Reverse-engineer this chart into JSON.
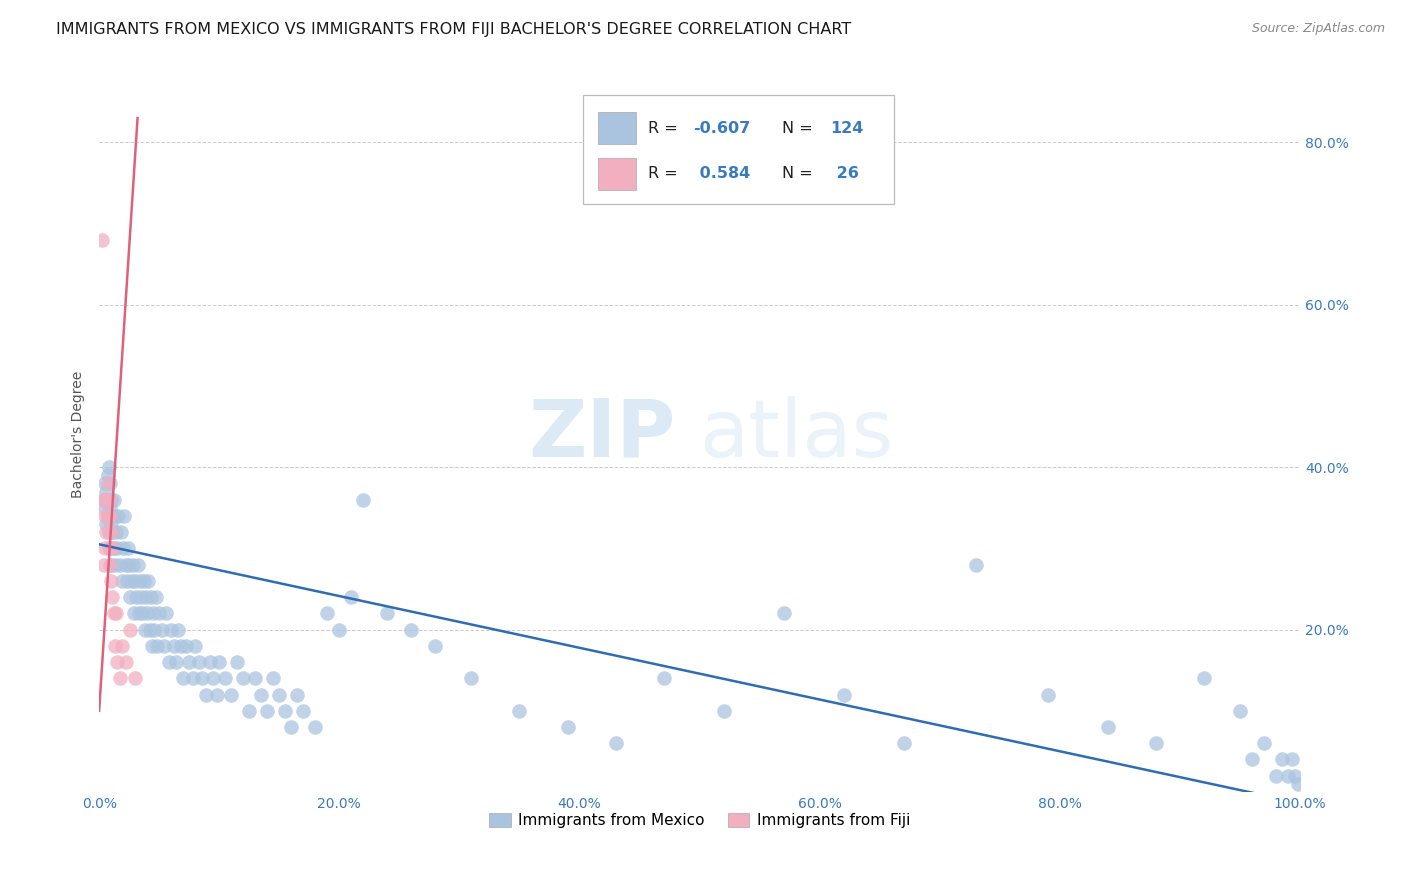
{
  "title": "IMMIGRANTS FROM MEXICO VS IMMIGRANTS FROM FIJI BACHELOR'S DEGREE CORRELATION CHART",
  "source": "Source: ZipAtlas.com",
  "ylabel": "Bachelor's Degree",
  "xlim": [
    0,
    1.0
  ],
  "ylim": [
    0,
    0.88
  ],
  "legend_label1": "Immigrants from Mexico",
  "legend_label2": "Immigrants from Fiji",
  "R_mexico": -0.607,
  "N_mexico": 124,
  "R_fiji": 0.584,
  "N_fiji": 26,
  "blue_color": "#aac4e0",
  "blue_line_color": "#2e6db4",
  "pink_color": "#f2afc0",
  "pink_line_color": "#e0607a",
  "watermark_zip": "ZIP",
  "watermark_atlas": "atlas",
  "title_fontsize": 11.5,
  "axis_fontsize": 10,
  "tick_fontsize": 10,
  "mexico_x": [
    0.004,
    0.005,
    0.005,
    0.006,
    0.006,
    0.007,
    0.007,
    0.008,
    0.008,
    0.008,
    0.009,
    0.009,
    0.009,
    0.01,
    0.01,
    0.01,
    0.011,
    0.011,
    0.012,
    0.012,
    0.013,
    0.013,
    0.014,
    0.015,
    0.016,
    0.017,
    0.018,
    0.019,
    0.02,
    0.021,
    0.022,
    0.023,
    0.024,
    0.025,
    0.026,
    0.027,
    0.028,
    0.029,
    0.03,
    0.031,
    0.032,
    0.033,
    0.034,
    0.035,
    0.036,
    0.037,
    0.038,
    0.039,
    0.04,
    0.041,
    0.042,
    0.043,
    0.044,
    0.045,
    0.046,
    0.047,
    0.048,
    0.05,
    0.052,
    0.054,
    0.056,
    0.058,
    0.06,
    0.062,
    0.064,
    0.066,
    0.068,
    0.07,
    0.072,
    0.075,
    0.078,
    0.08,
    0.083,
    0.086,
    0.089,
    0.092,
    0.095,
    0.098,
    0.1,
    0.105,
    0.11,
    0.115,
    0.12,
    0.125,
    0.13,
    0.135,
    0.14,
    0.145,
    0.15,
    0.155,
    0.16,
    0.165,
    0.17,
    0.18,
    0.19,
    0.2,
    0.21,
    0.22,
    0.24,
    0.26,
    0.28,
    0.31,
    0.35,
    0.39,
    0.43,
    0.47,
    0.52,
    0.57,
    0.62,
    0.67,
    0.73,
    0.79,
    0.84,
    0.88,
    0.92,
    0.95,
    0.96,
    0.97,
    0.98,
    0.985,
    0.99,
    0.993,
    0.996,
    0.998
  ],
  "mexico_y": [
    0.36,
    0.38,
    0.35,
    0.37,
    0.33,
    0.39,
    0.34,
    0.36,
    0.32,
    0.4,
    0.35,
    0.38,
    0.3,
    0.36,
    0.33,
    0.28,
    0.34,
    0.32,
    0.36,
    0.3,
    0.34,
    0.28,
    0.32,
    0.3,
    0.34,
    0.28,
    0.32,
    0.26,
    0.3,
    0.34,
    0.28,
    0.26,
    0.3,
    0.28,
    0.24,
    0.26,
    0.28,
    0.22,
    0.26,
    0.24,
    0.28,
    0.22,
    0.26,
    0.24,
    0.22,
    0.26,
    0.2,
    0.24,
    0.22,
    0.26,
    0.2,
    0.24,
    0.18,
    0.22,
    0.2,
    0.24,
    0.18,
    0.22,
    0.2,
    0.18,
    0.22,
    0.16,
    0.2,
    0.18,
    0.16,
    0.2,
    0.18,
    0.14,
    0.18,
    0.16,
    0.14,
    0.18,
    0.16,
    0.14,
    0.12,
    0.16,
    0.14,
    0.12,
    0.16,
    0.14,
    0.12,
    0.16,
    0.14,
    0.1,
    0.14,
    0.12,
    0.1,
    0.14,
    0.12,
    0.1,
    0.08,
    0.12,
    0.1,
    0.08,
    0.22,
    0.2,
    0.24,
    0.36,
    0.22,
    0.2,
    0.18,
    0.14,
    0.1,
    0.08,
    0.06,
    0.14,
    0.1,
    0.22,
    0.12,
    0.06,
    0.28,
    0.12,
    0.08,
    0.06,
    0.14,
    0.1,
    0.04,
    0.06,
    0.02,
    0.04,
    0.02,
    0.04,
    0.02,
    0.01
  ],
  "fiji_x": [
    0.002,
    0.003,
    0.004,
    0.005,
    0.005,
    0.006,
    0.006,
    0.007,
    0.007,
    0.008,
    0.008,
    0.009,
    0.009,
    0.01,
    0.01,
    0.011,
    0.011,
    0.012,
    0.013,
    0.014,
    0.015,
    0.017,
    0.019,
    0.022,
    0.026,
    0.03
  ],
  "fiji_y": [
    0.68,
    0.36,
    0.28,
    0.34,
    0.3,
    0.36,
    0.32,
    0.38,
    0.34,
    0.36,
    0.3,
    0.34,
    0.28,
    0.32,
    0.26,
    0.3,
    0.24,
    0.22,
    0.18,
    0.22,
    0.16,
    0.14,
    0.18,
    0.16,
    0.2,
    0.14
  ],
  "blue_line_x": [
    0.0,
    1.02
  ],
  "blue_line_y": [
    0.305,
    -0.02
  ],
  "pink_line_x": [
    0.0,
    0.032
  ],
  "pink_line_y": [
    0.1,
    0.83
  ]
}
